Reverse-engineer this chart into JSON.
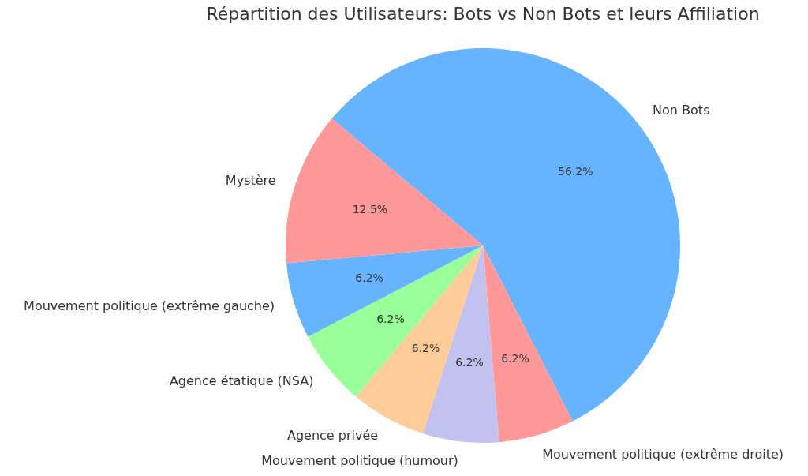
{
  "chart_data": {
    "type": "pie",
    "title": "Répartition des Utilisateurs: Bots vs Non Bots et leurs Affiliation",
    "categories": [
      "Non Bots",
      "Mouvement politique (extrême droite)",
      "Mouvement politique (humour)",
      "Agence privée",
      "Agence étatique (NSA)",
      "Mouvement politique (extrême gauche)",
      "Mystère"
    ],
    "values": [
      56.2,
      6.2,
      6.2,
      6.2,
      6.2,
      6.2,
      12.5
    ],
    "colors": [
      "#66b3ff",
      "#ff9999",
      "#c2c2f0",
      "#ffcc99",
      "#99ff99",
      "#66b3ff",
      "#ff9999"
    ],
    "value_labels": [
      "56.2%",
      "6.2%",
      "6.2%",
      "6.2%",
      "6.2%",
      "6.2%",
      "12.5%"
    ],
    "legend": false
  }
}
